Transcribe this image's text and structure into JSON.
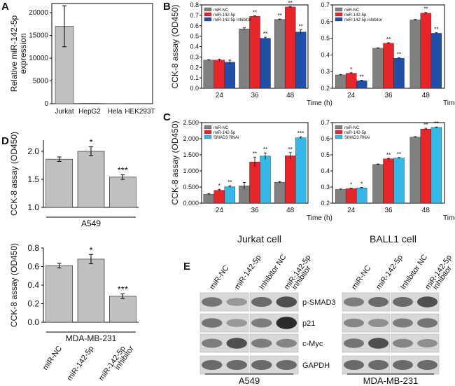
{
  "panels": {
    "A": "A",
    "B": "B",
    "C": "C",
    "D": "D",
    "E": "E"
  },
  "colors": {
    "nc": "#808080",
    "mir": "#e8262a",
    "inh": "#1f4fa8",
    "smad": "#33b8e8",
    "grey_bar": "#c0c0c0"
  },
  "chart_data": [
    {
      "id": "A",
      "type": "bar",
      "ylabel": "Relative miR-142-5p expression",
      "categories": [
        "Jurkat",
        "HepG2",
        "Hela",
        "HEK293T"
      ],
      "values": [
        17000,
        80,
        40,
        50
      ],
      "errors": [
        4500,
        0,
        0,
        0
      ],
      "ylim": [
        0,
        22000
      ],
      "yticks": [
        "0",
        "5000",
        "10000",
        "15000",
        "20000"
      ]
    },
    {
      "id": "B_jurkat",
      "type": "bar",
      "ylabel": "CCK-8 assay (OD450)",
      "xlabel": "Time (h)",
      "categories": [
        "24",
        "36",
        "48"
      ],
      "legend": [
        "miR-NC",
        "miR-142-5p",
        "miR-142-5p inhibitor"
      ],
      "series": [
        {
          "name": "miR-NC",
          "values": [
            0.27,
            0.57,
            0.66
          ],
          "errors": [
            0.005,
            0.01,
            0.005
          ]
        },
        {
          "name": "miR-142-5p",
          "values": [
            0.27,
            0.69,
            0.78
          ],
          "errors": [
            0.01,
            0.005,
            0.005
          ]
        },
        {
          "name": "miR-142-5p inhibitor",
          "values": [
            0.25,
            0.48,
            0.54
          ],
          "errors": [
            0.02,
            0.01,
            0.02
          ]
        }
      ],
      "stars": [
        [
          "",
          "",
          "**"
        ],
        [
          "",
          "**",
          "**"
        ],
        [
          "",
          "**",
          "**"
        ]
      ],
      "ylim": [
        0,
        0.8
      ],
      "yticks": [
        "0.0",
        "0.1",
        "0.2",
        "0.3",
        "0.4",
        "0.5",
        "0.6",
        "0.7",
        "0.8"
      ]
    },
    {
      "id": "B_ball1",
      "type": "bar",
      "xlabel": "Time (h)",
      "categories": [
        "24",
        "36",
        "48"
      ],
      "legend": [
        "miR-NC",
        "miR-142-5p",
        "miR-142-5p inhibitor"
      ],
      "series": [
        {
          "name": "miR-NC",
          "values": [
            0.28,
            0.44,
            0.61
          ],
          "errors": [
            0.003,
            0.003,
            0.003
          ]
        },
        {
          "name": "miR-142-5p",
          "values": [
            0.29,
            0.47,
            0.65
          ],
          "errors": [
            0.003,
            0.003,
            0.005
          ]
        },
        {
          "name": "miR-142-5p inhibitor",
          "values": [
            0.245,
            0.38,
            0.53
          ],
          "errors": [
            0.003,
            0.003,
            0.003
          ]
        }
      ],
      "stars": [
        [
          "",
          "",
          ""
        ],
        [
          "*",
          "**",
          "**"
        ],
        [
          "**",
          "**",
          "**"
        ]
      ],
      "ylim": [
        0.2,
        0.7
      ],
      "yticks": [
        "0.2",
        "0.3",
        "0.4",
        "0.5",
        "0.6",
        "0.7"
      ]
    },
    {
      "id": "C_jurkat",
      "type": "bar",
      "ylabel": "CCK-8 assay (OD450)",
      "xlabel": "Time (h)",
      "categories": [
        "24",
        "36",
        "48"
      ],
      "legend": [
        "miR-NC",
        "miR-142-5p",
        "SMAD3 RNAi"
      ],
      "series": [
        {
          "name": "miR-NC",
          "values": [
            0.28,
            0.54,
            0.65
          ],
          "errors": [
            0.02,
            0.1,
            0.02
          ]
        },
        {
          "name": "miR-142-5p",
          "values": [
            0.4,
            1.28,
            1.47
          ],
          "errors": [
            0.03,
            0.15,
            0.1
          ]
        },
        {
          "name": "SMAD3 RNAi",
          "values": [
            0.51,
            1.46,
            2.03
          ],
          "errors": [
            0.03,
            0.1,
            0.03
          ]
        }
      ],
      "stars": [
        [
          "",
          "",
          ""
        ],
        [
          "*",
          "**",
          "**"
        ],
        [
          "**",
          "**",
          "***"
        ]
      ],
      "ylim": [
        0,
        2.5
      ],
      "yticks": [
        "0.000",
        "0.500",
        "1.000",
        "1.500",
        "2.000",
        "2.500"
      ]
    },
    {
      "id": "C_ball1",
      "type": "bar",
      "xlabel": "Time (h)",
      "categories": [
        "24",
        "36",
        "48"
      ],
      "legend": [
        "miR-NC",
        "miR-142-5p",
        "SMAD3 RNAi"
      ],
      "series": [
        {
          "name": "miR-NC",
          "values": [
            0.285,
            0.44,
            0.61
          ],
          "errors": [
            0.003,
            0.003,
            0.003
          ]
        },
        {
          "name": "miR-142-5p",
          "values": [
            0.29,
            0.475,
            0.66
          ],
          "errors": [
            0.003,
            0.003,
            0.005
          ]
        },
        {
          "name": "SMAD3 RNAi",
          "values": [
            0.295,
            0.48,
            0.67
          ],
          "errors": [
            0.003,
            0.003,
            0.003
          ]
        }
      ],
      "stars": [
        [
          "",
          "",
          ""
        ],
        [
          "*",
          "**",
          "**"
        ],
        [
          "*",
          "**",
          "**"
        ]
      ],
      "ylim": [
        0.2,
        0.7
      ],
      "yticks": [
        "0.2",
        "0.3",
        "0.4",
        "0.5",
        "0.6",
        "0.7"
      ]
    },
    {
      "id": "D_a549",
      "type": "bar",
      "ylabel": "CCK-8 assay (OD450)",
      "group_label": "A549",
      "categories": [
        "miR-NC",
        "miR-142-5p",
        "miR-142-5p inhibitor"
      ],
      "values": [
        1.86,
        2.0,
        1.54
      ],
      "errors": [
        0.04,
        0.08,
        0.04
      ],
      "stars": [
        "",
        "*",
        "***"
      ],
      "ylim": [
        1.0,
        2.2
      ],
      "yticks": [
        "1.0",
        "1.5",
        "2.0"
      ]
    },
    {
      "id": "D_mda",
      "type": "bar",
      "ylabel": "CCK-8 assay (OD450)",
      "group_label": "MDA-MB-231",
      "categories": [
        "miR-NC",
        "miR-142-5p",
        "miR-142-5p inhibitor"
      ],
      "values": [
        0.61,
        0.68,
        0.28
      ],
      "errors": [
        0.025,
        0.05,
        0.025
      ],
      "stars": [
        "",
        "*",
        "***"
      ],
      "ylim": [
        0.0,
        0.8
      ],
      "yticks": [
        "0.0",
        "0.2",
        "0.4",
        "0.6",
        "0.8"
      ]
    }
  ],
  "labels": {
    "time_h": "Time (h)",
    "jurkat_cell": "Jurkat cell",
    "ball1_cell": "BALL1 cell",
    "d_xticks": [
      "miR-NC",
      "miR-142-5p",
      "miR-142-5p inhibitor"
    ]
  },
  "blot": {
    "lanes": [
      "miR-NC",
      "miR-142-5p",
      "Inhibitor NC",
      "miR-142-5p inhibitor"
    ],
    "proteins": [
      "p-SMAD3",
      "p21",
      "c-Myc",
      "GAPDH"
    ],
    "groups": [
      "A549",
      "MDA-MB-231"
    ]
  }
}
